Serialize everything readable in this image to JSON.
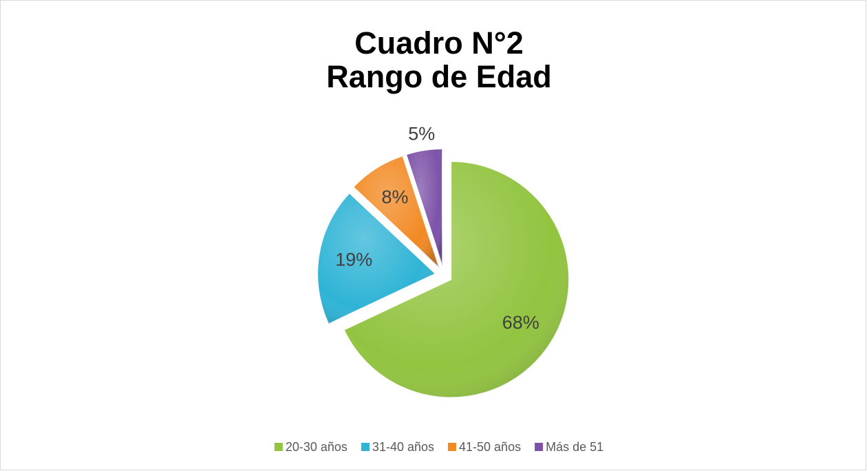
{
  "chart_data": {
    "type": "pie",
    "title": [
      "Cuadro N°2",
      "Rango de Edad"
    ],
    "categories": [
      "20-30 años",
      "31-40 años",
      "41-50 años",
      "Más de 51"
    ],
    "values": [
      68,
      19,
      8,
      5
    ],
    "value_labels": [
      "68%",
      "19%",
      "8%",
      "5%"
    ],
    "colors": [
      "#92c440",
      "#2fb4d6",
      "#f28a24",
      "#7d52a8"
    ],
    "legend": "bottom"
  }
}
